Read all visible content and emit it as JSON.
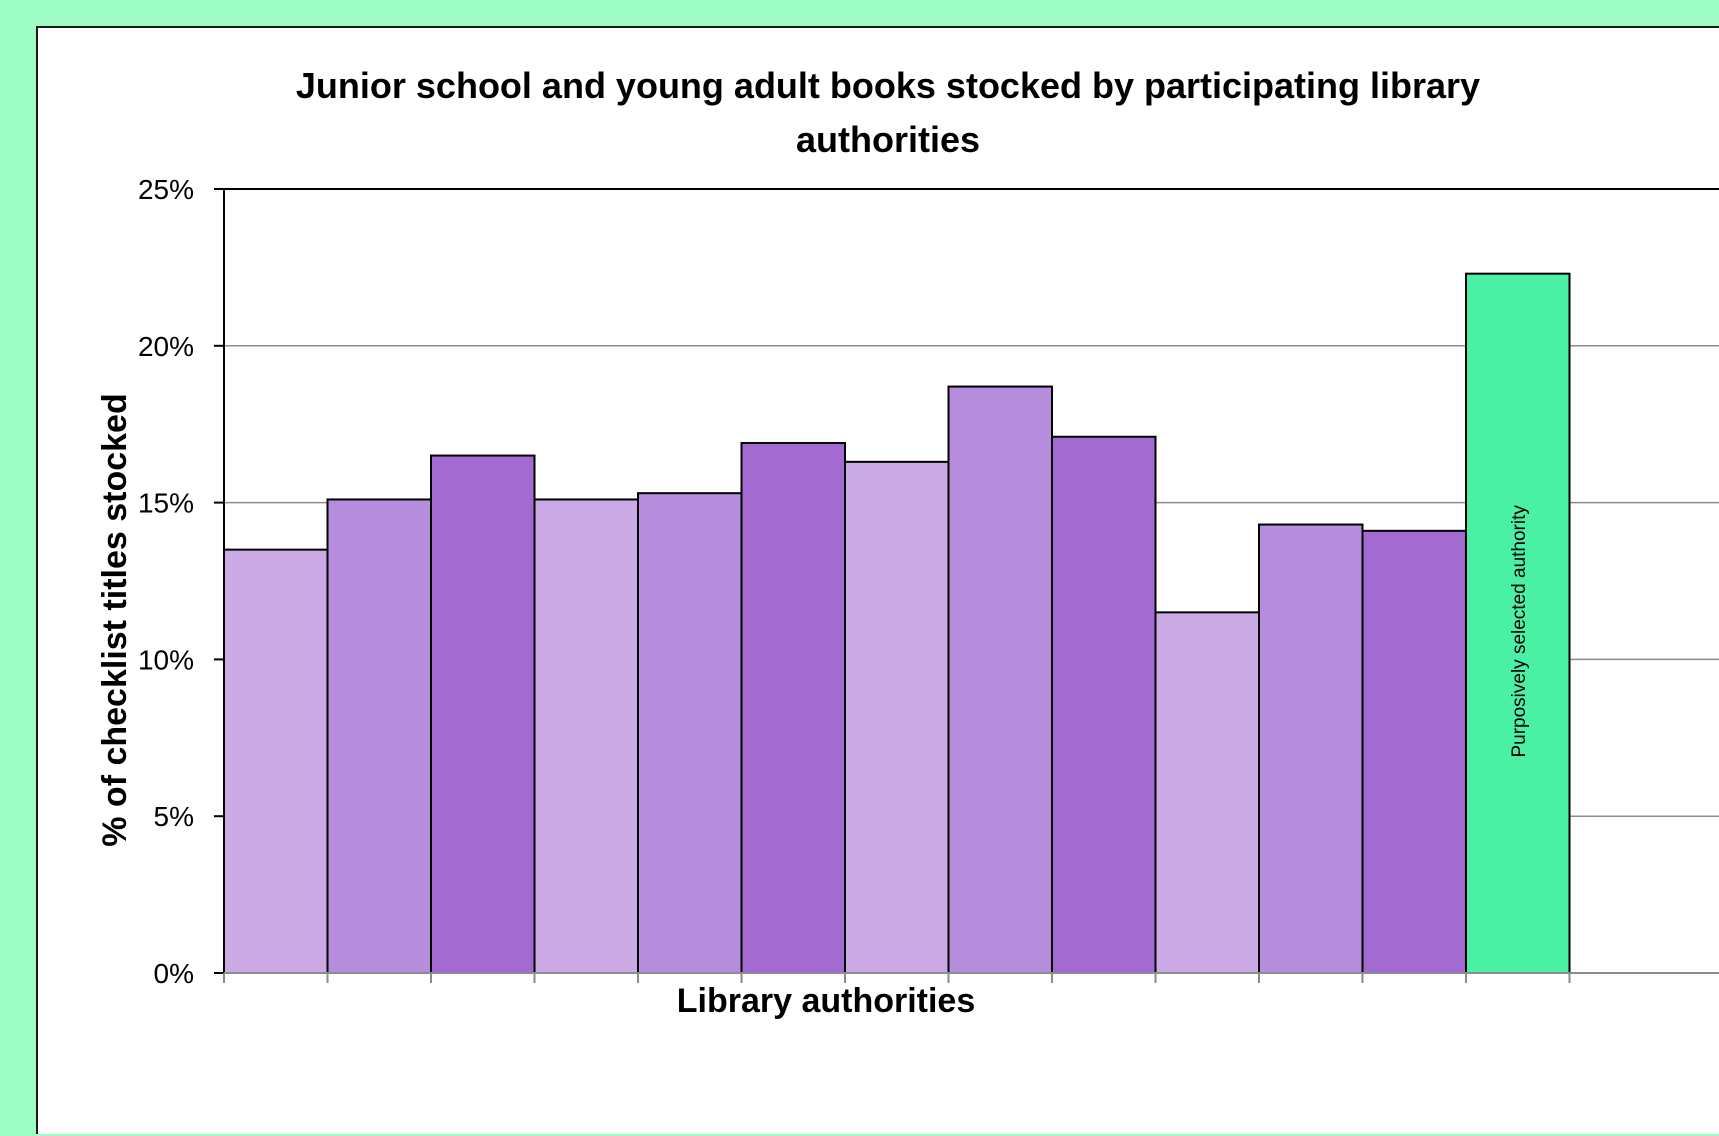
{
  "chart_data": {
    "type": "bar",
    "title_lines": [
      "Junior school and young adult books stocked by participating library",
      "authorities"
    ],
    "xlabel": "Library authorities",
    "ylabel": "% of checklist titles stocked",
    "ylim": [
      0,
      0.25
    ],
    "yticks": [
      {
        "value": 0,
        "label": "0%"
      },
      {
        "value": 0.05,
        "label": "5%"
      },
      {
        "value": 0.1,
        "label": "10%"
      },
      {
        "value": 0.15,
        "label": "15%"
      },
      {
        "value": 0.2,
        "label": "20%"
      },
      {
        "value": 0.25,
        "label": "25%"
      }
    ],
    "grid": true,
    "values": [
      0.135,
      0.151,
      0.165,
      0.151,
      0.153,
      0.169,
      0.163,
      0.187,
      0.171,
      0.115,
      0.143,
      0.141,
      0.223
    ],
    "bar_colors": [
      "#caa9e4",
      "#b68ddc",
      "#a36bd1",
      "#caa9e4",
      "#b68ddc",
      "#a36bd1",
      "#caa9e4",
      "#b68ddc",
      "#a36bd1",
      "#caa9e4",
      "#b68ddc",
      "#a36bd1",
      "#4af0a4"
    ],
    "annotation": {
      "bar_index": 12,
      "text": "Purposively selected authority"
    }
  },
  "colors": {
    "page_background": "#9dfdc5",
    "plot_background": "#ffffff",
    "gridline": "#8c8c8c",
    "bar_outline": "#000000"
  }
}
